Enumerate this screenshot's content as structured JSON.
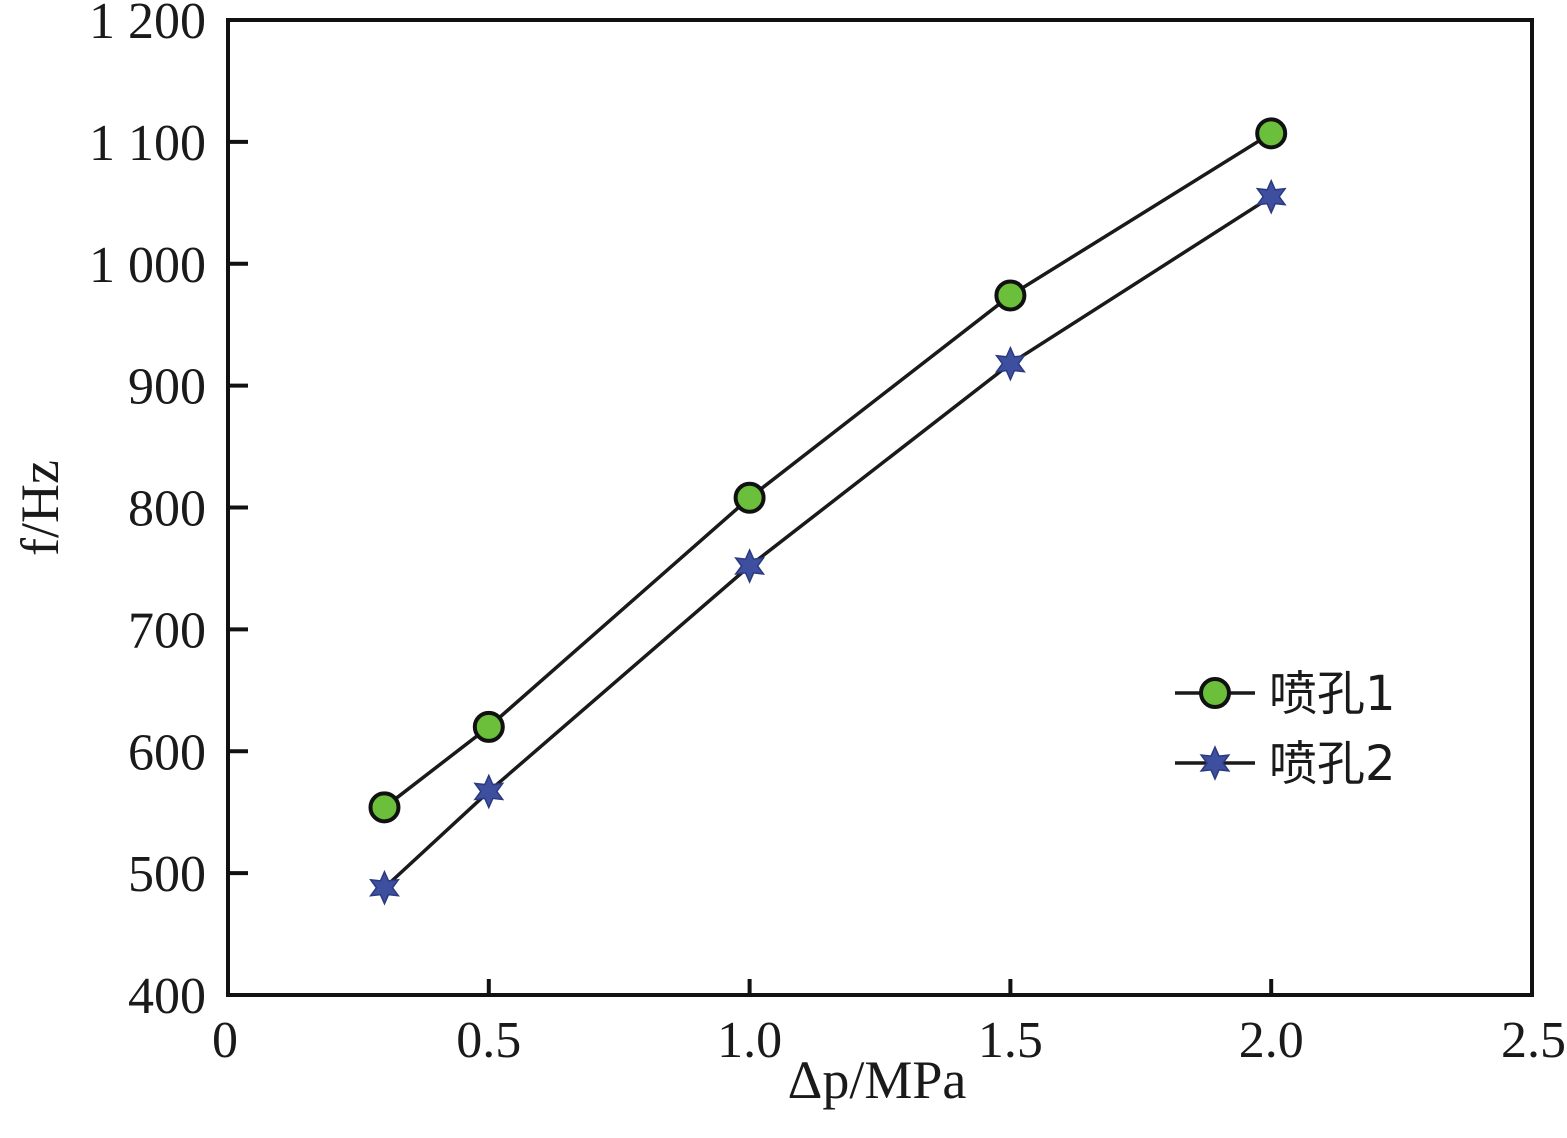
{
  "chart_data": {
    "type": "line",
    "title": "",
    "xlabel": "Δp/MPa",
    "ylabel": "f/Hz",
    "xlim": [
      0,
      2.5
    ],
    "ylim": [
      400,
      1200
    ],
    "x_ticks": [
      0,
      0.5,
      1.0,
      1.5,
      2.0,
      2.5
    ],
    "x_tick_labels": [
      "0",
      "0.5",
      "1.0",
      "1.5",
      "2.0",
      "2.5"
    ],
    "y_ticks": [
      400,
      500,
      600,
      700,
      800,
      900,
      1000,
      1100,
      1200
    ],
    "y_tick_labels": [
      "400",
      "500",
      "600",
      "700",
      "800",
      "900",
      "1 000",
      "1 100",
      "1 200"
    ],
    "grid": false,
    "legend_position": "center-right",
    "series": [
      {
        "name": "喷孔1",
        "marker": "circle",
        "color": "#6cbf3a",
        "x": [
          0.3,
          0.5,
          1.0,
          1.5,
          2.0
        ],
        "values": [
          554,
          620,
          808,
          974,
          1107
        ]
      },
      {
        "name": "喷孔2",
        "marker": "star",
        "color": "#3d4f9e",
        "x": [
          0.3,
          0.5,
          1.0,
          1.5,
          2.0
        ],
        "values": [
          488,
          567,
          752,
          918,
          1055
        ]
      }
    ]
  }
}
